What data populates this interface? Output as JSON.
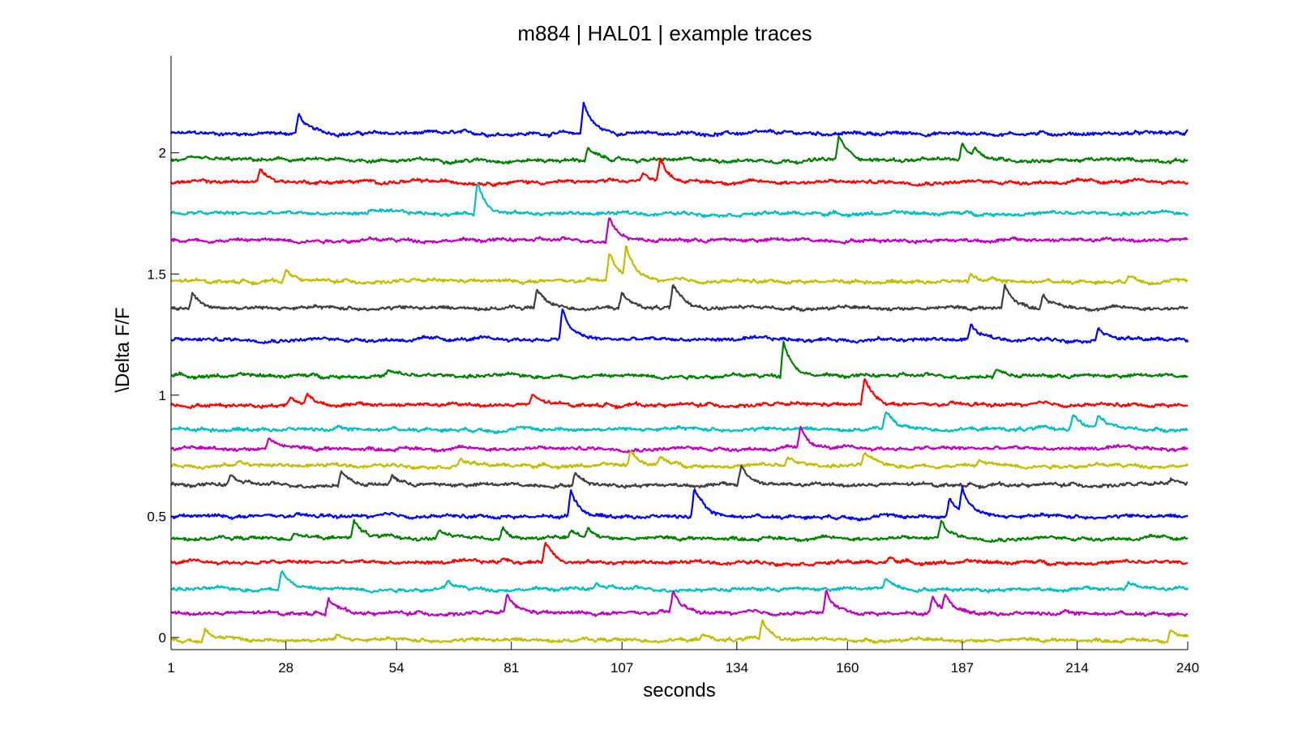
{
  "chart_data": {
    "type": "line",
    "title": "m884 | HAL01 | example traces",
    "xlabel": "seconds",
    "ylabel": "\\Delta F/F",
    "xlim": [
      1,
      240
    ],
    "ylim": [
      -0.05,
      2.4
    ],
    "x_ticks": [
      1,
      28,
      54,
      81,
      107,
      134,
      160,
      187,
      214,
      240
    ],
    "y_ticks": [
      0,
      0.5,
      1,
      1.5,
      2
    ],
    "grid": false,
    "legend": "none",
    "traces": [
      {
        "color": "#0000ff",
        "baseline": 2.08,
        "peaks": [
          [
            31,
            0.08
          ],
          [
            98,
            0.13
          ],
          [
            240,
            0.02
          ]
        ]
      },
      {
        "color": "#008000",
        "baseline": 1.97,
        "peaks": [
          [
            99,
            0.05
          ],
          [
            158,
            0.1
          ],
          [
            187,
            0.07
          ],
          [
            190,
            0.04
          ]
        ]
      },
      {
        "color": "#ff0000",
        "baseline": 1.88,
        "peaks": [
          [
            22,
            0.05
          ],
          [
            112,
            0.04
          ],
          [
            116,
            0.09
          ]
        ]
      },
      {
        "color": "#00bfbf",
        "baseline": 1.75,
        "peaks": [
          [
            48,
            0.02
          ],
          [
            73,
            0.13
          ]
        ]
      },
      {
        "color": "#bf00bf",
        "baseline": 1.64,
        "peaks": [
          [
            104,
            0.1
          ]
        ]
      },
      {
        "color": "#bfbf00",
        "baseline": 1.47,
        "peaks": [
          [
            28,
            0.05
          ],
          [
            104,
            0.12
          ],
          [
            108,
            0.13
          ],
          [
            189,
            0.03
          ],
          [
            226,
            0.03
          ]
        ]
      },
      {
        "color": "#404040",
        "baseline": 1.36,
        "peaks": [
          [
            6,
            0.06
          ],
          [
            87,
            0.08
          ],
          [
            107,
            0.06
          ],
          [
            119,
            0.09
          ],
          [
            197,
            0.1
          ],
          [
            206,
            0.06
          ]
        ]
      },
      {
        "color": "#0000ff",
        "baseline": 1.23,
        "peaks": [
          [
            93,
            0.12
          ],
          [
            189,
            0.06
          ],
          [
            219,
            0.06
          ]
        ]
      },
      {
        "color": "#008000",
        "baseline": 1.08,
        "peaks": [
          [
            52,
            0.02
          ],
          [
            145,
            0.15
          ],
          [
            195,
            0.03
          ]
        ]
      },
      {
        "color": "#ff0000",
        "baseline": 0.96,
        "peaks": [
          [
            29,
            0.03
          ],
          [
            33,
            0.04
          ],
          [
            86,
            0.04
          ],
          [
            164,
            0.11
          ]
        ]
      },
      {
        "color": "#00bfbf",
        "baseline": 0.86,
        "peaks": [
          [
            169,
            0.08
          ],
          [
            213,
            0.07
          ],
          [
            219,
            0.05
          ]
        ]
      },
      {
        "color": "#bf00bf",
        "baseline": 0.78,
        "peaks": [
          [
            24,
            0.05
          ],
          [
            149,
            0.08
          ]
        ]
      },
      {
        "color": "#bfbf00",
        "baseline": 0.71,
        "peaks": [
          [
            17,
            0.02
          ],
          [
            69,
            0.03
          ],
          [
            109,
            0.06
          ],
          [
            116,
            0.03
          ],
          [
            146,
            0.03
          ],
          [
            164,
            0.05
          ],
          [
            191,
            0.02
          ]
        ]
      },
      {
        "color": "#404040",
        "baseline": 0.63,
        "peaks": [
          [
            15,
            0.04
          ],
          [
            41,
            0.06
          ],
          [
            53,
            0.04
          ],
          [
            96,
            0.05
          ],
          [
            135,
            0.08
          ],
          [
            236,
            0.02
          ]
        ]
      },
      {
        "color": "#0000ff",
        "baseline": 0.5,
        "peaks": [
          [
            95,
            0.11
          ],
          [
            124,
            0.12
          ],
          [
            184,
            0.08
          ],
          [
            187,
            0.1
          ]
        ]
      },
      {
        "color": "#008000",
        "baseline": 0.41,
        "peaks": [
          [
            30,
            0.03
          ],
          [
            44,
            0.08
          ],
          [
            64,
            0.03
          ],
          [
            79,
            0.04
          ],
          [
            95,
            0.03
          ],
          [
            99,
            0.04
          ],
          [
            182,
            0.07
          ]
        ]
      },
      {
        "color": "#ff0000",
        "baseline": 0.31,
        "peaks": [
          [
            79,
            0.02
          ],
          [
            89,
            0.09
          ],
          [
            170,
            0.02
          ]
        ]
      },
      {
        "color": "#00bfbf",
        "baseline": 0.2,
        "peaks": [
          [
            27,
            0.09
          ],
          [
            66,
            0.03
          ],
          [
            101,
            0.02
          ],
          [
            169,
            0.05
          ],
          [
            226,
            0.03
          ]
        ]
      },
      {
        "color": "#bf00bf",
        "baseline": 0.1,
        "peaks": [
          [
            38,
            0.07
          ],
          [
            80,
            0.07
          ],
          [
            119,
            0.09
          ],
          [
            155,
            0.09
          ],
          [
            180,
            0.07
          ],
          [
            183,
            0.07
          ]
        ]
      },
      {
        "color": "#bfbf00",
        "baseline": -0.01,
        "peaks": [
          [
            9,
            0.06
          ],
          [
            40,
            0.02
          ],
          [
            126,
            0.02
          ],
          [
            140,
            0.08
          ],
          [
            236,
            0.05
          ]
        ]
      }
    ]
  }
}
